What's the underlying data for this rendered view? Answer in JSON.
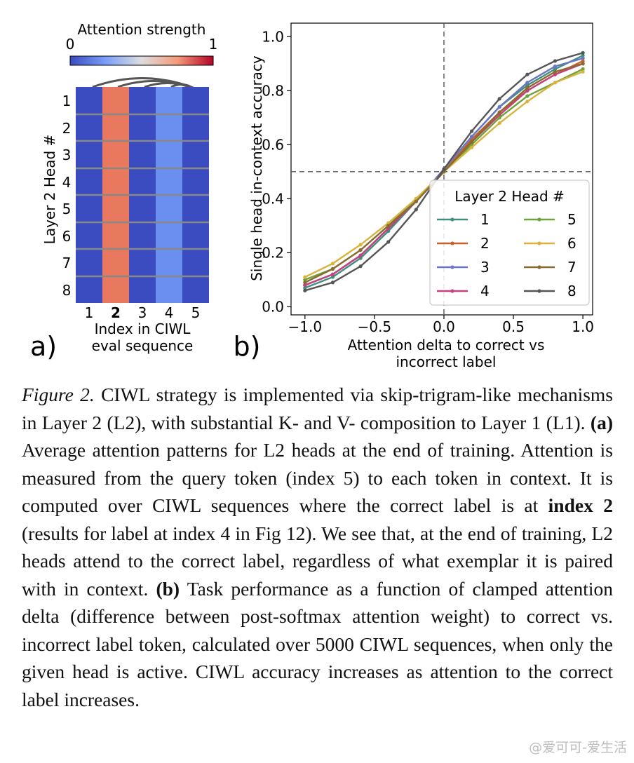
{
  "panel_a": {
    "panel_label": "a)",
    "colorbar_title": "Attention strength",
    "colorbar_min": "0",
    "colorbar_max": "1",
    "ylabel": "Layer 2 Head #",
    "xlabel_line1": "Index in CIWL",
    "xlabel_line2": "eval sequence",
    "row_labels": [
      "1",
      "2",
      "3",
      "4",
      "5",
      "6",
      "7",
      "8"
    ],
    "col_labels": [
      "1",
      "2",
      "3",
      "4",
      "5"
    ],
    "bold_col": "2",
    "colors": {
      "blue_dark": "#3b4cc0",
      "blue_light": "#6b8ff0",
      "red": "#e8795f"
    }
  },
  "chart_data": {
    "type": "line",
    "panel_label": "b)",
    "xlabel_line1": "Attention delta to correct vs",
    "xlabel_line2": "incorrect label",
    "ylabel": "Single head in-context accuracy",
    "xlim": [
      -1.1,
      1.07
    ],
    "ylim": [
      -0.03,
      1.05
    ],
    "xticks": [
      -1.0,
      -0.5,
      0.0,
      0.5,
      1.0
    ],
    "xtick_labels": [
      "−1.0",
      "−0.5",
      "0.0",
      "0.5",
      "1.0"
    ],
    "yticks": [
      0.0,
      0.2,
      0.4,
      0.6,
      0.8,
      1.0
    ],
    "ytick_labels": [
      "0.0",
      "0.2",
      "0.4",
      "0.6",
      "0.8",
      "1.0"
    ],
    "reference_lines": {
      "x": 0.0,
      "y": 0.5
    },
    "legend_title": "Layer 2 Head #",
    "legend_position": "lower-right",
    "x": [
      -1.0,
      -0.8,
      -0.6,
      -0.4,
      -0.2,
      0.0,
      0.2,
      0.4,
      0.6,
      0.8,
      1.0
    ],
    "series": [
      {
        "name": "1",
        "color": "#3f8f7f",
        "values": [
          0.07,
          0.11,
          0.18,
          0.28,
          0.39,
          0.51,
          0.63,
          0.74,
          0.82,
          0.88,
          0.93
        ]
      },
      {
        "name": "2",
        "color": "#c4622d",
        "values": [
          0.08,
          0.12,
          0.19,
          0.29,
          0.39,
          0.5,
          0.62,
          0.72,
          0.8,
          0.86,
          0.91
        ]
      },
      {
        "name": "3",
        "color": "#6b76c4",
        "values": [
          0.08,
          0.12,
          0.19,
          0.29,
          0.39,
          0.51,
          0.63,
          0.74,
          0.83,
          0.89,
          0.92
        ]
      },
      {
        "name": "4",
        "color": "#c4407f",
        "values": [
          0.08,
          0.12,
          0.19,
          0.29,
          0.39,
          0.5,
          0.61,
          0.71,
          0.8,
          0.86,
          0.9
        ]
      },
      {
        "name": "5",
        "color": "#6fa33a",
        "values": [
          0.1,
          0.14,
          0.21,
          0.3,
          0.4,
          0.5,
          0.6,
          0.7,
          0.78,
          0.83,
          0.88
        ]
      },
      {
        "name": "6",
        "color": "#d8b33e",
        "values": [
          0.11,
          0.16,
          0.23,
          0.31,
          0.4,
          0.5,
          0.59,
          0.68,
          0.76,
          0.83,
          0.87
        ]
      },
      {
        "name": "7",
        "color": "#8a6a2e",
        "values": [
          0.09,
          0.14,
          0.21,
          0.3,
          0.39,
          0.5,
          0.61,
          0.72,
          0.81,
          0.87,
          0.9
        ]
      },
      {
        "name": "8",
        "color": "#555555",
        "values": [
          0.06,
          0.09,
          0.15,
          0.24,
          0.36,
          0.51,
          0.65,
          0.77,
          0.86,
          0.91,
          0.94
        ]
      }
    ]
  },
  "caption": {
    "fig_label": "Figure 2.",
    "part1": " CIWL strategy is implemented via skip-trigram-like mechanisms in Layer 2 (L2), with substantial K- and V- composition to Layer 1 (L1). ",
    "bold_a": "(a)",
    "part2": " Average attention patterns for L2 heads at the end of training. Attention is measured from the query token (index 5) to each token in context. It is computed over CIWL sequences where the correct label is at ",
    "bold_index": "index 2",
    "part3": " (results for label at index 4 in Fig 12). We see that, at the end of training, L2 heads attend to the correct label, regardless of what exemplar it is paired with in context. ",
    "bold_b": "(b)",
    "part4": " Task performance as a function of clamped attention delta (difference between post-softmax attention weight) to correct vs. incorrect label token, calculated over 5000 CIWL sequences, when only the given head is active. CIWL accuracy increases as attention to the correct label increases."
  },
  "watermark": "@爱可可-爱生活"
}
